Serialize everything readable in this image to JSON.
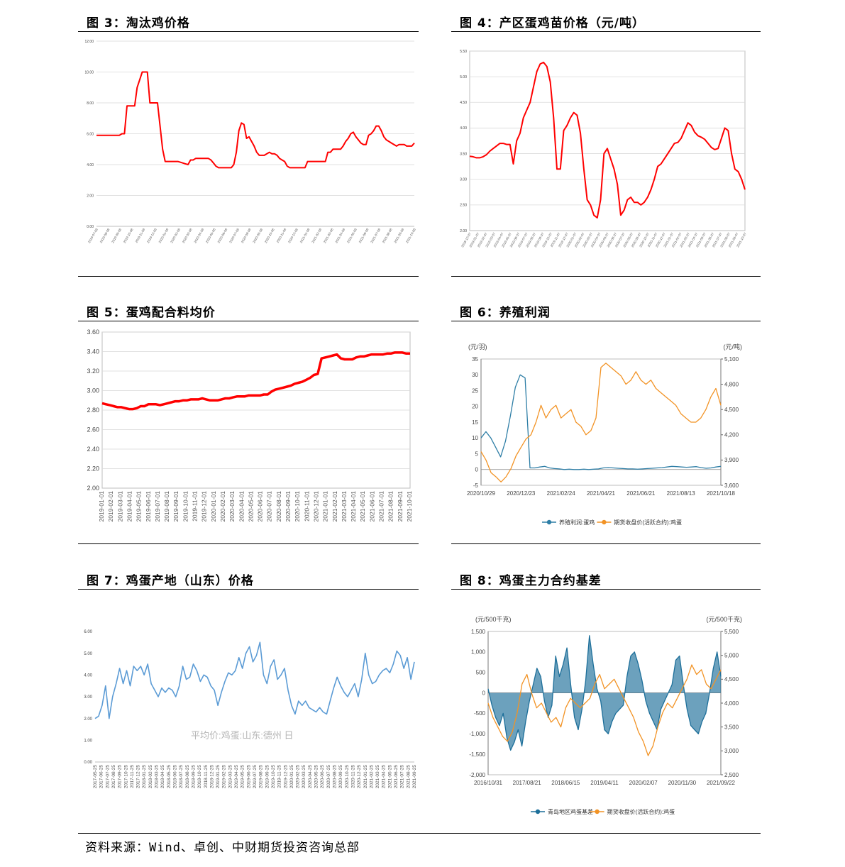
{
  "footer": {
    "source": "资料来源：Wind、卓创、中财期货投资咨询总部"
  },
  "chart_data": [
    {
      "id": "fig3",
      "title": "图 3：淘汰鸡价格",
      "type": "line",
      "color": "#ff0000",
      "ylim": [
        0,
        12
      ],
      "yticks": [
        "0.00",
        "2.00",
        "4.00",
        "6.00",
        "8.00",
        "10.00",
        "12.00"
      ],
      "x_labels": [
        "2019-07-08",
        "2019-08-08",
        "2019-09-08",
        "2019-10-08",
        "2019-11-08",
        "2019-12-08",
        "2020-01-08",
        "2020-02-08",
        "2020-03-08",
        "2020-04-08",
        "2020-05-08",
        "2020-06-08",
        "2020-07-08",
        "2020-08-08",
        "2020-09-08",
        "2020-10-08",
        "2020-11-08",
        "2020-12-08",
        "2021-01-08",
        "2021-02-08",
        "2021-03-08",
        "2021-04-08",
        "2021-05-08",
        "2021-06-08",
        "2021-07-08",
        "2021-08-08",
        "2021-09-08",
        "2021-10-08"
      ],
      "series": [
        {
          "name": "淘汰鸡价格",
          "values": [
            5.9,
            5.9,
            5.9,
            5.9,
            5.9,
            5.9,
            5.9,
            5.9,
            5.9,
            5.9,
            6.0,
            6.0,
            7.8,
            7.8,
            7.8,
            7.8,
            9.0,
            9.5,
            10.0,
            10.0,
            10.0,
            8.0,
            8.0,
            8.0,
            8.0,
            6.5,
            5.0,
            4.2,
            4.2,
            4.2,
            4.2,
            4.2,
            4.2,
            4.15,
            4.1,
            4.05,
            4.0,
            4.3,
            4.3,
            4.4,
            4.4,
            4.4,
            4.4,
            4.4,
            4.4,
            4.3,
            4.1,
            3.9,
            3.8,
            3.8,
            3.8,
            3.8,
            3.8,
            3.8,
            4.0,
            4.8,
            6.2,
            6.7,
            6.6,
            5.7,
            5.8,
            5.5,
            5.2,
            4.8,
            4.6,
            4.6,
            4.6,
            4.7,
            4.8,
            4.7,
            4.7,
            4.6,
            4.4,
            4.3,
            4.2,
            3.9,
            3.8,
            3.8,
            3.8,
            3.8,
            3.8,
            3.8,
            3.8,
            4.2,
            4.2,
            4.2,
            4.2,
            4.2,
            4.2,
            4.2,
            4.2,
            4.8,
            4.8,
            5.0,
            5.0,
            5.0,
            5.0,
            5.2,
            5.5,
            5.7,
            6.0,
            6.1,
            5.8,
            5.6,
            5.4,
            5.3,
            5.3,
            5.9,
            6.0,
            6.2,
            6.5,
            6.5,
            6.2,
            5.8,
            5.6,
            5.5,
            5.4,
            5.3,
            5.2,
            5.3,
            5.3,
            5.3,
            5.2,
            5.2,
            5.2,
            5.4
          ]
        }
      ]
    },
    {
      "id": "fig4",
      "title": "图 4：产区蛋鸡苗价格（元/吨）",
      "type": "line",
      "color": "#ff0000",
      "ylim": [
        2.0,
        5.5
      ],
      "yticks": [
        "2.00",
        "2.50",
        "3.00",
        "3.50",
        "4.00",
        "4.50",
        "5.00",
        "5.50"
      ],
      "x_labels": [
        "2018-12-07",
        "2019-01-07",
        "2019-02-07",
        "2019-03-07",
        "2019-04-07",
        "2019-05-07",
        "2019-06-07",
        "2019-07-07",
        "2019-08-07",
        "2019-09-07",
        "2019-10-07",
        "2019-11-07",
        "2019-12-07",
        "2020-01-07",
        "2020-02-07",
        "2020-03-07",
        "2020-04-07",
        "2020-05-07",
        "2020-06-07",
        "2020-07-07",
        "2020-08-07",
        "2020-09-07",
        "2020-10-07",
        "2020-11-07",
        "2020-12-07",
        "2021-01-07",
        "2021-02-07",
        "2021-03-07",
        "2021-04-07",
        "2021-05-07",
        "2021-06-07",
        "2021-07-07",
        "2021-08-07",
        "2021-09-07",
        "2021-10-07"
      ],
      "series": [
        {
          "name": "蛋鸡苗价格",
          "values": [
            3.45,
            3.44,
            3.42,
            3.42,
            3.44,
            3.48,
            3.55,
            3.6,
            3.65,
            3.7,
            3.7,
            3.68,
            3.68,
            3.3,
            3.75,
            3.9,
            4.2,
            4.35,
            4.5,
            4.8,
            5.1,
            5.25,
            5.28,
            5.2,
            4.9,
            4.2,
            3.2,
            3.2,
            3.95,
            4.05,
            4.2,
            4.3,
            4.25,
            3.9,
            3.2,
            2.6,
            2.5,
            2.3,
            2.25,
            2.6,
            3.5,
            3.6,
            3.4,
            3.2,
            2.9,
            2.3,
            2.4,
            2.6,
            2.65,
            2.55,
            2.55,
            2.5,
            2.55,
            2.65,
            2.8,
            3.0,
            3.25,
            3.3,
            3.4,
            3.5,
            3.6,
            3.7,
            3.72,
            3.8,
            3.95,
            4.1,
            4.05,
            3.92,
            3.85,
            3.82,
            3.78,
            3.7,
            3.62,
            3.58,
            3.6,
            3.8,
            4.0,
            3.95,
            3.5,
            3.2,
            3.15,
            3.0,
            2.8
          ]
        }
      ]
    },
    {
      "id": "fig5",
      "title": "图 5：蛋鸡配合料均价",
      "type": "line",
      "color": "#ff0000",
      "ylim": [
        2.0,
        3.6
      ],
      "yticks": [
        "2.00",
        "2.20",
        "2.40",
        "2.60",
        "2.80",
        "3.00",
        "3.20",
        "3.40",
        "3.60"
      ],
      "x_labels": [
        "2019-01-01",
        "2019-02-01",
        "2019-03-01",
        "2019-04-01",
        "2019-05-01",
        "2019-06-01",
        "2019-07-01",
        "2019-08-01",
        "2019-09-01",
        "2019-10-01",
        "2019-11-01",
        "2019-12-01",
        "2020-01-01",
        "2020-02-01",
        "2020-03-01",
        "2020-04-01",
        "2020-05-01",
        "2020-06-01",
        "2020-07-01",
        "2020-08-01",
        "2020-09-01",
        "2020-10-01",
        "2020-11-01",
        "2020-12-01",
        "2021-01-01",
        "2021-02-01",
        "2021-03-01",
        "2021-04-01",
        "2021-05-01",
        "2021-06-01",
        "2021-07-01",
        "2021-08-01",
        "2021-09-01",
        "2021-10-01"
      ],
      "series": [
        {
          "name": "蛋鸡配合料均价",
          "values": [
            2.87,
            2.86,
            2.85,
            2.84,
            2.83,
            2.83,
            2.82,
            2.81,
            2.81,
            2.82,
            2.84,
            2.84,
            2.86,
            2.86,
            2.86,
            2.85,
            2.86,
            2.87,
            2.88,
            2.89,
            2.89,
            2.9,
            2.9,
            2.91,
            2.91,
            2.91,
            2.92,
            2.91,
            2.9,
            2.9,
            2.9,
            2.91,
            2.92,
            2.92,
            2.93,
            2.94,
            2.94,
            2.94,
            2.95,
            2.95,
            2.95,
            2.95,
            2.96,
            2.96,
            2.99,
            3.01,
            3.02,
            3.03,
            3.04,
            3.05,
            3.07,
            3.08,
            3.09,
            3.11,
            3.13,
            3.16,
            3.17,
            3.33,
            3.34,
            3.35,
            3.36,
            3.37,
            3.33,
            3.32,
            3.32,
            3.32,
            3.34,
            3.35,
            3.35,
            3.36,
            3.37,
            3.37,
            3.37,
            3.37,
            3.38,
            3.38,
            3.39,
            3.39,
            3.39,
            3.38,
            3.38
          ]
        }
      ]
    },
    {
      "id": "fig6",
      "title": "图 6：养殖利润",
      "type": "line",
      "left_unit": "(元/羽)",
      "right_unit": "(元/吨)",
      "ylim": [
        -5,
        35
      ],
      "ylim_right": [
        3600,
        5100
      ],
      "yticks": [
        "-5",
        "0",
        "5",
        "10",
        "15",
        "20",
        "25",
        "30",
        "35"
      ],
      "yticks_right": [
        "3,600",
        "3,900",
        "4,200",
        "4,500",
        "4,800",
        "5,100"
      ],
      "x_labels": [
        "2020/10/29",
        "2020/12/23",
        "2021/02/24",
        "2021/04/21",
        "2021/06/21",
        "2021/08/13",
        "2021/10/18"
      ],
      "series": [
        {
          "name": "养殖利润:蛋鸡",
          "color": "#2e7ea6",
          "axis": "left",
          "values": [
            10,
            12,
            10,
            7,
            4,
            9,
            17,
            26,
            30,
            29,
            0.5,
            0.5,
            0.8,
            1,
            0.5,
            0.3,
            0.2,
            0,
            0.1,
            0,
            0,
            0.1,
            0,
            0.1,
            0.2,
            0.5,
            0.6,
            0.5,
            0.4,
            0.3,
            0.2,
            0.2,
            0.1,
            0.2,
            0.3,
            0.4,
            0.5,
            0.6,
            0.8,
            1,
            0.9,
            0.8,
            0.7,
            0.8,
            0.9,
            0.6,
            0.4,
            0.5,
            0.8,
            1
          ]
        },
        {
          "name": "期货收盘价(活跃合约):鸡蛋",
          "color": "#f29325",
          "axis": "right",
          "values": [
            4000,
            3900,
            3750,
            3700,
            3640,
            3700,
            3800,
            3950,
            4050,
            4150,
            4200,
            4350,
            4550,
            4400,
            4500,
            4550,
            4400,
            4450,
            4500,
            4350,
            4300,
            4200,
            4250,
            4400,
            5000,
            5050,
            5000,
            4950,
            4900,
            4800,
            4850,
            4950,
            4850,
            4800,
            4850,
            4750,
            4700,
            4650,
            4600,
            4550,
            4450,
            4400,
            4350,
            4350,
            4400,
            4500,
            4650,
            4750,
            4550
          ]
        }
      ]
    },
    {
      "id": "fig7",
      "title": "图 7：鸡蛋产地（山东）价格",
      "type": "line",
      "color": "#5b9bd5",
      "watermark": "平均价:鸡蛋:山东:德州 日",
      "ylim": [
        0,
        6
      ],
      "yticks": [
        "0.00",
        "1.00",
        "2.00",
        "3.00",
        "4.00",
        "5.00",
        "6.00"
      ],
      "x_labels": [
        "2017-05-25",
        "2017-06-25",
        "2017-07-25",
        "2017-08-25",
        "2017-09-25",
        "2017-10-25",
        "2017-11-25",
        "2017-12-25",
        "2018-01-25",
        "2018-02-25",
        "2018-03-25",
        "2018-04-25",
        "2018-05-25",
        "2018-06-25",
        "2018-07-25",
        "2018-08-25",
        "2018-09-25",
        "2018-10-25",
        "2018-11-25",
        "2018-12-25",
        "2019-01-25",
        "2019-02-25",
        "2019-03-25",
        "2019-04-25",
        "2019-05-25",
        "2019-06-25",
        "2019-07-25",
        "2019-08-25",
        "2019-09-25",
        "2019-10-25",
        "2019-11-25",
        "2019-12-25",
        "2020-01-25",
        "2020-02-25",
        "2020-03-25",
        "2020-04-25",
        "2020-05-25",
        "2020-06-25",
        "2020-07-25",
        "2020-08-25",
        "2020-09-25",
        "2020-10-25",
        "2020-11-25",
        "2020-12-25",
        "2021-01-25",
        "2021-02-25",
        "2021-03-25",
        "2021-04-25",
        "2021-05-25",
        "2021-06-25",
        "2021-07-25",
        "2021-08-25",
        "2021-09-25"
      ],
      "series": [
        {
          "name": "平均价:鸡蛋:山东:德州",
          "values": [
            2.0,
            2.1,
            2.6,
            3.5,
            2.0,
            3.0,
            3.6,
            4.3,
            3.6,
            4.2,
            3.5,
            4.4,
            4.2,
            4.4,
            4.0,
            4.5,
            3.6,
            3.3,
            3.0,
            3.4,
            3.2,
            3.4,
            3.3,
            3.0,
            3.5,
            4.4,
            3.8,
            3.9,
            4.5,
            4.2,
            3.7,
            4.0,
            3.9,
            3.5,
            3.3,
            2.6,
            3.2,
            3.7,
            4.1,
            4.0,
            4.2,
            4.8,
            4.3,
            5.0,
            5.3,
            4.6,
            4.9,
            5.5,
            4.0,
            3.6,
            4.4,
            4.7,
            3.8,
            4.0,
            4.3,
            3.3,
            2.6,
            2.2,
            2.8,
            2.6,
            2.8,
            2.5,
            2.4,
            2.3,
            2.5,
            2.3,
            2.2,
            2.8,
            3.4,
            3.9,
            3.5,
            3.2,
            3.0,
            3.3,
            3.6,
            3.0,
            3.8,
            5.0,
            4.0,
            3.6,
            3.7,
            4.0,
            4.2,
            4.3,
            4.1,
            4.5,
            5.1,
            4.9,
            4.3,
            4.8,
            3.8,
            4.6
          ]
        }
      ]
    },
    {
      "id": "fig8",
      "title": "图 8：鸡蛋主力合约基差",
      "type": "area",
      "left_unit": "(元/500千克)",
      "right_unit": "(元/500千克)",
      "ylim": [
        -2000,
        1500
      ],
      "ylim_right": [
        2500,
        5500
      ],
      "yticks": [
        "-2,000",
        "-1,500",
        "-1,000",
        "-500",
        "0",
        "500",
        "1,000",
        "1,500"
      ],
      "yticks_right": [
        "2,500",
        "3,000",
        "3,500",
        "4,000",
        "4,500",
        "5,000",
        "5,500"
      ],
      "x_labels": [
        "2016/10/31",
        "2017/08/21",
        "2018/06/15",
        "2019/04/11",
        "2020/02/07",
        "2020/11/30",
        "2021/09/22"
      ],
      "series": [
        {
          "name": "青岛地区鸡蛋基差",
          "color": "#1d6f9a",
          "axis": "left",
          "values": [
            100,
            -300,
            -600,
            -800,
            -500,
            -1100,
            -1400,
            -1200,
            -900,
            -1300,
            -700,
            -200,
            200,
            600,
            400,
            -200,
            -600,
            -300,
            900,
            400,
            700,
            1100,
            200,
            -600,
            -900,
            -400,
            300,
            1400,
            700,
            100,
            -200,
            -900,
            -1000,
            -700,
            -500,
            -400,
            -300,
            400,
            900,
            1000,
            700,
            300,
            -200,
            -500,
            -700,
            -900,
            -400,
            -200,
            0,
            200,
            800,
            900,
            200,
            -400,
            -800,
            -900,
            -1000,
            -700,
            -500,
            0,
            600,
            1000,
            400
          ]
        },
        {
          "name": "期货收盘价(活跃合约):鸡蛋",
          "color": "#f29325",
          "axis": "right",
          "values": [
            4000,
            3700,
            3500,
            3300,
            3200,
            3400,
            3800,
            4400,
            4600,
            4200,
            3900,
            4000,
            3800,
            3600,
            3700,
            3500,
            3900,
            4100,
            4000,
            3900,
            4000,
            4100,
            4400,
            4600,
            4300,
            4400,
            4500,
            4300,
            4100,
            3900,
            3700,
            3400,
            3200,
            2900,
            3100,
            3500,
            3800,
            4000,
            3900,
            4100,
            4300,
            4500,
            4800,
            4600,
            4700,
            4400,
            4300,
            4500,
            4700
          ]
        }
      ]
    }
  ]
}
